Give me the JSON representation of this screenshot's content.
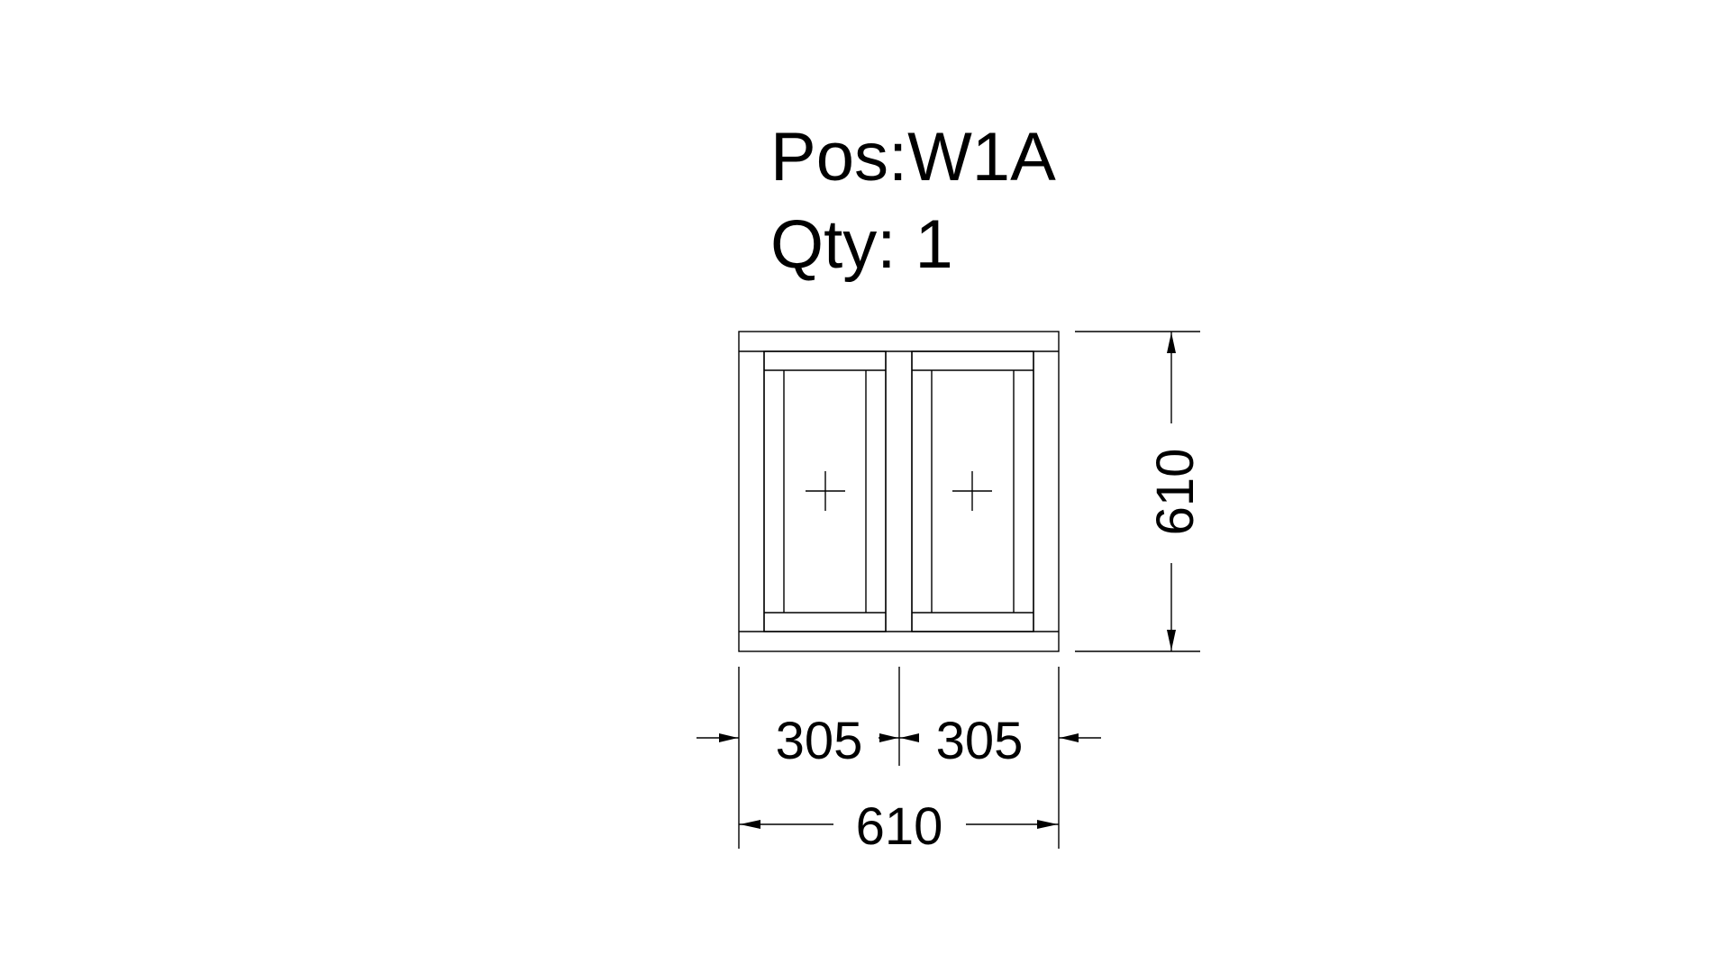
{
  "header": {
    "position_label": "Pos:W1A",
    "quantity_label": "Qty: 1"
  },
  "dimensions": {
    "overall_height": "610",
    "left_sash_width": "305",
    "right_sash_width": "305",
    "overall_width": "610"
  }
}
